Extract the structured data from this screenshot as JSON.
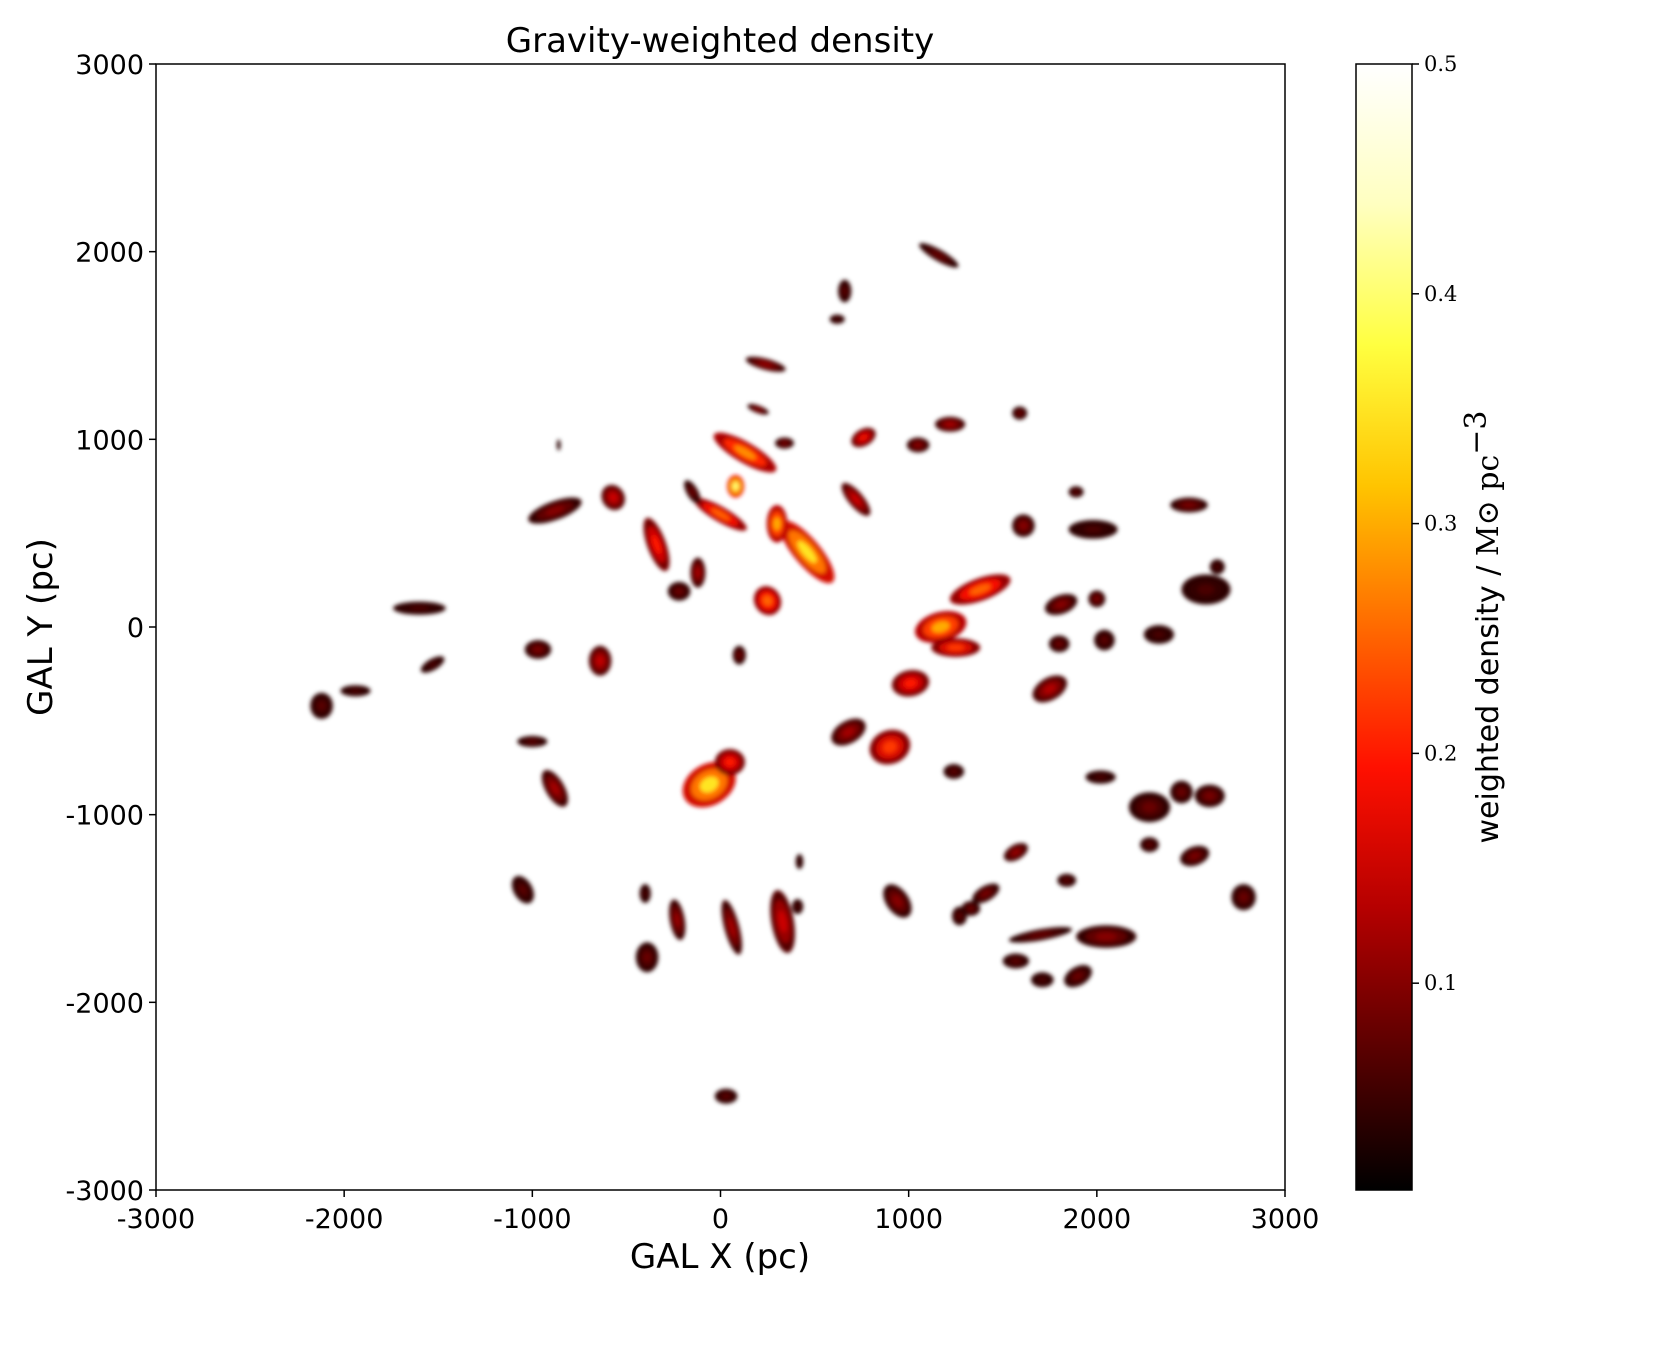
{
  "chart_data": {
    "type": "heatmap",
    "title": "Gravity-weighted density",
    "xlabel": "GAL X (pc)",
    "ylabel": "GAL Y (pc)",
    "xlim": [
      -3000,
      3000
    ],
    "ylim": [
      -3000,
      3000
    ],
    "xticks": [
      -3000,
      -2000,
      -1000,
      0,
      1000,
      2000,
      3000
    ],
    "yticks": [
      -3000,
      -2000,
      -1000,
      0,
      1000,
      2000,
      3000
    ],
    "xtick_labels": [
      "-3000",
      "-2000",
      "-1000",
      "0",
      "1000",
      "2000",
      "3000"
    ],
    "ytick_labels": [
      "-3000",
      "-2000",
      "-1000",
      "0",
      "1000",
      "2000",
      "3000"
    ],
    "colormap": "afmhot",
    "colorbar": {
      "label_text": "weighted density / ",
      "label_unit": "M⊙ pc",
      "label_exp": "−3",
      "vmin": 0.01,
      "vmax": 0.5,
      "ticks": [
        0.1,
        0.2,
        0.3,
        0.4,
        0.5
      ],
      "tick_labels": [
        "0.1",
        "0.2",
        "0.3",
        "0.4",
        "0.5"
      ],
      "colors": [
        "#000000",
        "#5a0000",
        "#b50000",
        "#ff1000",
        "#ff6a00",
        "#ffc400",
        "#ffff40",
        "#ffffc0",
        "#ffffff"
      ]
    },
    "clouds": [
      {
        "x": 1160,
        "y": 1980,
        "rx": 30,
        "ry": 120,
        "rot": -60,
        "v": 0.08
      },
      {
        "x": 660,
        "y": 1790,
        "rx": 35,
        "ry": 60,
        "rot": 0,
        "v": 0.07
      },
      {
        "x": 620,
        "y": 1640,
        "rx": 40,
        "ry": 25,
        "rot": 0,
        "v": 0.06
      },
      {
        "x": 240,
        "y": 1400,
        "rx": 30,
        "ry": 110,
        "rot": -75,
        "v": 0.11
      },
      {
        "x": 200,
        "y": 1160,
        "rx": 20,
        "ry": 60,
        "rot": -70,
        "v": 0.1
      },
      {
        "x": 130,
        "y": 930,
        "rx": 55,
        "ry": 190,
        "rot": -60,
        "v": 0.28
      },
      {
        "x": 80,
        "y": 750,
        "rx": 45,
        "ry": 60,
        "rot": 0,
        "v": 0.4
      },
      {
        "x": 0,
        "y": 600,
        "rx": 40,
        "ry": 160,
        "rot": -60,
        "v": 0.25
      },
      {
        "x": -120,
        "y": 290,
        "rx": 40,
        "ry": 80,
        "rot": 0,
        "v": 0.12
      },
      {
        "x": 340,
        "y": 980,
        "rx": 50,
        "ry": 30,
        "rot": 0,
        "v": 0.09
      },
      {
        "x": 760,
        "y": 1010,
        "rx": 70,
        "ry": 45,
        "rot": -30,
        "v": 0.18
      },
      {
        "x": 1050,
        "y": 970,
        "rx": 60,
        "ry": 40,
        "rot": 0,
        "v": 0.1
      },
      {
        "x": 1220,
        "y": 1080,
        "rx": 80,
        "ry": 40,
        "rot": 0,
        "v": 0.12
      },
      {
        "x": 1590,
        "y": 1140,
        "rx": 40,
        "ry": 35,
        "rot": 0,
        "v": 0.08
      },
      {
        "x": 1890,
        "y": 720,
        "rx": 40,
        "ry": 30,
        "rot": 0,
        "v": 0.07
      },
      {
        "x": 1980,
        "y": 520,
        "rx": 130,
        "ry": 50,
        "rot": 0,
        "v": 0.06
      },
      {
        "x": 2490,
        "y": 650,
        "rx": 100,
        "ry": 40,
        "rot": 0,
        "v": 0.09
      },
      {
        "x": 2580,
        "y": 200,
        "rx": 130,
        "ry": 80,
        "rot": 0,
        "v": 0.06
      },
      {
        "x": 2640,
        "y": 320,
        "rx": 40,
        "ry": 40,
        "rot": 0,
        "v": 0.06
      },
      {
        "x": 1610,
        "y": 540,
        "rx": 60,
        "ry": 60,
        "rot": 0,
        "v": 0.1
      },
      {
        "x": 1380,
        "y": 200,
        "rx": 170,
        "ry": 60,
        "rot": -20,
        "v": 0.25
      },
      {
        "x": 1170,
        "y": 0,
        "rx": 140,
        "ry": 80,
        "rot": -15,
        "v": 0.3
      },
      {
        "x": 1250,
        "y": -110,
        "rx": 130,
        "ry": 50,
        "rot": 0,
        "v": 0.22
      },
      {
        "x": 1010,
        "y": -300,
        "rx": 100,
        "ry": 70,
        "rot": -10,
        "v": 0.2
      },
      {
        "x": 1750,
        "y": -330,
        "rx": 100,
        "ry": 60,
        "rot": -30,
        "v": 0.13
      },
      {
        "x": 1810,
        "y": 120,
        "rx": 90,
        "ry": 50,
        "rot": -20,
        "v": 0.1
      },
      {
        "x": 2000,
        "y": 150,
        "rx": 45,
        "ry": 45,
        "rot": 0,
        "v": 0.09
      },
      {
        "x": 1800,
        "y": -90,
        "rx": 55,
        "ry": 45,
        "rot": 0,
        "v": 0.08
      },
      {
        "x": 2040,
        "y": -70,
        "rx": 55,
        "ry": 55,
        "rot": 0,
        "v": 0.07
      },
      {
        "x": 2330,
        "y": -40,
        "rx": 80,
        "ry": 50,
        "rot": 0,
        "v": 0.06
      },
      {
        "x": 460,
        "y": 400,
        "rx": 70,
        "ry": 210,
        "rot": -40,
        "v": 0.35
      },
      {
        "x": 300,
        "y": 550,
        "rx": 55,
        "ry": 100,
        "rot": 0,
        "v": 0.3
      },
      {
        "x": 250,
        "y": 140,
        "rx": 70,
        "ry": 80,
        "rot": -30,
        "v": 0.25
      },
      {
        "x": 720,
        "y": 680,
        "rx": 40,
        "ry": 110,
        "rot": -40,
        "v": 0.15
      },
      {
        "x": 100,
        "y": -150,
        "rx": 35,
        "ry": 50,
        "rot": 0,
        "v": 0.08
      },
      {
        "x": -340,
        "y": 440,
        "rx": 50,
        "ry": 150,
        "rot": -20,
        "v": 0.2
      },
      {
        "x": -570,
        "y": 690,
        "rx": 60,
        "ry": 70,
        "rot": -30,
        "v": 0.15
      },
      {
        "x": -880,
        "y": 620,
        "rx": 150,
        "ry": 50,
        "rot": -20,
        "v": 0.1
      },
      {
        "x": -220,
        "y": 190,
        "rx": 60,
        "ry": 50,
        "rot": 0,
        "v": 0.08
      },
      {
        "x": -150,
        "y": 720,
        "rx": 30,
        "ry": 70,
        "rot": -30,
        "v": 0.08
      },
      {
        "x": -1600,
        "y": 100,
        "rx": 140,
        "ry": 35,
        "rot": 0,
        "v": 0.06
      },
      {
        "x": -970,
        "y": -120,
        "rx": 70,
        "ry": 50,
        "rot": 0,
        "v": 0.09
      },
      {
        "x": -640,
        "y": -180,
        "rx": 60,
        "ry": 80,
        "rot": 0,
        "v": 0.14
      },
      {
        "x": -1530,
        "y": -200,
        "rx": 70,
        "ry": 30,
        "rot": -30,
        "v": 0.06
      },
      {
        "x": -2120,
        "y": -420,
        "rx": 60,
        "ry": 70,
        "rot": 0,
        "v": 0.07
      },
      {
        "x": -1940,
        "y": -340,
        "rx": 80,
        "ry": 30,
        "rot": 0,
        "v": 0.06
      },
      {
        "x": -1000,
        "y": -610,
        "rx": 80,
        "ry": 30,
        "rot": 0,
        "v": 0.07
      },
      {
        "x": -880,
        "y": -860,
        "rx": 50,
        "ry": 110,
        "rot": -30,
        "v": 0.12
      },
      {
        "x": -60,
        "y": -840,
        "rx": 150,
        "ry": 110,
        "rot": -30,
        "v": 0.35
      },
      {
        "x": 50,
        "y": -720,
        "rx": 80,
        "ry": 70,
        "rot": 0,
        "v": 0.2
      },
      {
        "x": 900,
        "y": -640,
        "rx": 110,
        "ry": 90,
        "rot": -20,
        "v": 0.22
      },
      {
        "x": 680,
        "y": -560,
        "rx": 100,
        "ry": 60,
        "rot": -30,
        "v": 0.12
      },
      {
        "x": 1240,
        "y": -770,
        "rx": 55,
        "ry": 40,
        "rot": 0,
        "v": 0.07
      },
      {
        "x": 2020,
        "y": -800,
        "rx": 80,
        "ry": 35,
        "rot": 0,
        "v": 0.06
      },
      {
        "x": 2280,
        "y": -960,
        "rx": 110,
        "ry": 80,
        "rot": 0,
        "v": 0.08
      },
      {
        "x": 2600,
        "y": -900,
        "rx": 80,
        "ry": 60,
        "rot": 0,
        "v": 0.09
      },
      {
        "x": 2450,
        "y": -880,
        "rx": 60,
        "ry": 60,
        "rot": 0,
        "v": 0.08
      },
      {
        "x": 2520,
        "y": -1220,
        "rx": 80,
        "ry": 50,
        "rot": -20,
        "v": 0.09
      },
      {
        "x": 2280,
        "y": -1160,
        "rx": 50,
        "ry": 40,
        "rot": 0,
        "v": 0.07
      },
      {
        "x": 2780,
        "y": -1440,
        "rx": 65,
        "ry": 70,
        "rot": 0,
        "v": 0.08
      },
      {
        "x": 1570,
        "y": -1200,
        "rx": 70,
        "ry": 40,
        "rot": -30,
        "v": 0.11
      },
      {
        "x": 1410,
        "y": -1420,
        "rx": 80,
        "ry": 40,
        "rot": -30,
        "v": 0.09
      },
      {
        "x": 1330,
        "y": -1500,
        "rx": 50,
        "ry": 40,
        "rot": 0,
        "v": 0.08
      },
      {
        "x": 1840,
        "y": -1350,
        "rx": 50,
        "ry": 35,
        "rot": 0,
        "v": 0.07
      },
      {
        "x": 940,
        "y": -1460,
        "rx": 60,
        "ry": 100,
        "rot": -35,
        "v": 0.1
      },
      {
        "x": 1270,
        "y": -1540,
        "rx": 40,
        "ry": 50,
        "rot": 0,
        "v": 0.07
      },
      {
        "x": 2050,
        "y": -1650,
        "rx": 160,
        "ry": 60,
        "rot": 0,
        "v": 0.1
      },
      {
        "x": 1700,
        "y": -1640,
        "rx": 170,
        "ry": 30,
        "rot": -10,
        "v": 0.08
      },
      {
        "x": 1570,
        "y": -1780,
        "rx": 70,
        "ry": 40,
        "rot": 0,
        "v": 0.07
      },
      {
        "x": 1710,
        "y": -1880,
        "rx": 60,
        "ry": 40,
        "rot": 0,
        "v": 0.06
      },
      {
        "x": 1900,
        "y": -1860,
        "rx": 80,
        "ry": 50,
        "rot": -30,
        "v": 0.08
      },
      {
        "x": 330,
        "y": -1570,
        "rx": 60,
        "ry": 170,
        "rot": -10,
        "v": 0.15
      },
      {
        "x": 60,
        "y": -1600,
        "rx": 40,
        "ry": 150,
        "rot": -15,
        "v": 0.12
      },
      {
        "x": -230,
        "y": -1560,
        "rx": 40,
        "ry": 110,
        "rot": -10,
        "v": 0.11
      },
      {
        "x": -390,
        "y": -1760,
        "rx": 60,
        "ry": 80,
        "rot": 0,
        "v": 0.08
      },
      {
        "x": -1050,
        "y": -1400,
        "rx": 50,
        "ry": 80,
        "rot": -30,
        "v": 0.07
      },
      {
        "x": 410,
        "y": -1490,
        "rx": 30,
        "ry": 40,
        "rot": 0,
        "v": 0.06
      },
      {
        "x": 30,
        "y": -2500,
        "rx": 60,
        "ry": 40,
        "rot": 0,
        "v": 0.07
      },
      {
        "x": -400,
        "y": -1420,
        "rx": 30,
        "ry": 50,
        "rot": 0,
        "v": 0.06
      },
      {
        "x": 420,
        "y": -1250,
        "rx": 20,
        "ry": 40,
        "rot": 0,
        "v": 0.05
      },
      {
        "x": -860,
        "y": 970,
        "rx": 10,
        "ry": 30,
        "rot": 0,
        "v": 0.04
      }
    ]
  }
}
